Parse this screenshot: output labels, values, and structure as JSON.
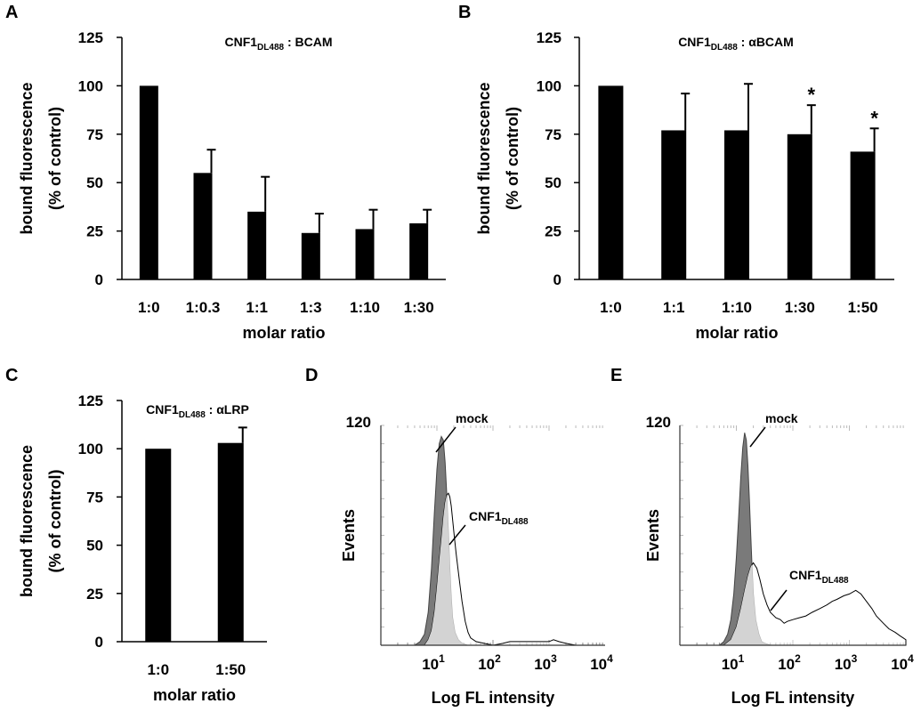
{
  "chart_data": [
    {
      "panel": "A",
      "type": "bar",
      "title": "CNF1DL488 : BCAM",
      "title_parts": {
        "main": "CNF1",
        "sub": "DL488",
        "rest": " : BCAM"
      },
      "xlabel": "molar ratio",
      "ylabel": "bound fluorescence",
      "ylabel2": "(% of control)",
      "ylim": [
        0,
        125
      ],
      "yticks": [
        0,
        25,
        50,
        75,
        100,
        125
      ],
      "categories": [
        "1:0",
        "1:0.3",
        "1:1",
        "1:3",
        "1:10",
        "1:30"
      ],
      "values": [
        100,
        55,
        35,
        24,
        26,
        29
      ],
      "errors": [
        0,
        12,
        18,
        10,
        10,
        7
      ],
      "significant": [
        false,
        false,
        false,
        false,
        false,
        false
      ],
      "bar_color": "#000000"
    },
    {
      "panel": "B",
      "type": "bar",
      "title": "CNF1DL488 : αBCAM",
      "title_parts": {
        "main": "CNF1",
        "sub": "DL488",
        "rest": " : αBCAM"
      },
      "xlabel": "molar ratio",
      "ylabel": "bound fluorescence",
      "ylabel2": "(% of control)",
      "ylim": [
        0,
        125
      ],
      "yticks": [
        0,
        25,
        50,
        75,
        100,
        125
      ],
      "categories": [
        "1:0",
        "1:1",
        "1:10",
        "1:30",
        "1:50"
      ],
      "values": [
        100,
        77,
        77,
        75,
        66
      ],
      "errors": [
        0,
        19,
        24,
        15,
        12
      ],
      "significant": [
        false,
        false,
        false,
        true,
        true
      ],
      "significance_marker": "*",
      "bar_color": "#000000"
    },
    {
      "panel": "C",
      "type": "bar",
      "title": "CNF1DL488 : αLRP",
      "title_parts": {
        "main": "CNF1",
        "sub": "DL488",
        "rest": " : αLRP"
      },
      "xlabel": "molar ratio",
      "ylabel": "bound fluorescence",
      "ylabel2": "(% of control)",
      "ylim": [
        0,
        125
      ],
      "yticks": [
        0,
        25,
        50,
        75,
        100,
        125
      ],
      "categories": [
        "1:0",
        "1:50"
      ],
      "values": [
        100,
        103
      ],
      "errors": [
        0,
        8
      ],
      "significant": [
        false,
        false
      ],
      "bar_color": "#000000"
    },
    {
      "panel": "D",
      "type": "area",
      "xscale": "log",
      "xlim": [
        1,
        10000
      ],
      "xtick_labels": [
        {
          "base": "10",
          "exp": "1"
        },
        {
          "base": "10",
          "exp": "2"
        },
        {
          "base": "10",
          "exp": "3"
        },
        {
          "base": "10",
          "exp": "4"
        }
      ],
      "xtick_values": [
        10,
        100,
        1000,
        10000
      ],
      "ylim": [
        0,
        120
      ],
      "ytick_label": "120",
      "xlabel": "Log FL intensity",
      "ylabel": "Events",
      "series": [
        {
          "name": "mock",
          "fill": "#7a7a7a",
          "x": [
            4,
            5,
            6,
            7,
            8,
            9,
            10,
            11,
            12,
            13,
            14,
            15,
            16,
            17,
            18,
            19,
            21,
            24,
            28,
            35
          ],
          "y": [
            0,
            2,
            6,
            18,
            42,
            72,
            96,
            110,
            114,
            112,
            100,
            82,
            62,
            42,
            26,
            15,
            7,
            3,
            1,
            0
          ]
        },
        {
          "name": "CNF1DL488",
          "name_parts": {
            "main": "CNF1",
            "sub": "DL488"
          },
          "fill": "#d3d3d3",
          "x": [
            6,
            7,
            8,
            9,
            10,
            11,
            12,
            13,
            14,
            15,
            16,
            17,
            18,
            20,
            22,
            25,
            28,
            32,
            36,
            40,
            50,
            70,
            100,
            150,
            200,
            300,
            500,
            800,
            1000,
            1200,
            1500,
            2000,
            3000,
            5000,
            8000
          ],
          "y": [
            0,
            3,
            8,
            18,
            32,
            46,
            58,
            70,
            78,
            82,
            83,
            81,
            76,
            62,
            50,
            36,
            24,
            13,
            7,
            4,
            2,
            1,
            0,
            1,
            2,
            2,
            2,
            2,
            2,
            3,
            2,
            1,
            0,
            0,
            0
          ]
        }
      ]
    },
    {
      "panel": "E",
      "type": "area",
      "xscale": "log",
      "xlim": [
        1,
        10000
      ],
      "xtick_labels": [
        {
          "base": "10",
          "exp": "1"
        },
        {
          "base": "10",
          "exp": "2"
        },
        {
          "base": "10",
          "exp": "3"
        },
        {
          "base": "10",
          "exp": "4"
        }
      ],
      "xtick_values": [
        10,
        100,
        1000,
        10000
      ],
      "ylim": [
        0,
        120
      ],
      "ytick_label": "120",
      "xlabel": "Log FL intensity",
      "ylabel": "Events",
      "series": [
        {
          "name": "mock",
          "fill": "#7a7a7a",
          "x": [
            5,
            6,
            7,
            8,
            9,
            10,
            11,
            12,
            13,
            14,
            15,
            16,
            17,
            18,
            19,
            20,
            22,
            25,
            28,
            32,
            40
          ],
          "y": [
            0,
            2,
            6,
            14,
            28,
            48,
            70,
            92,
            108,
            116,
            112,
            98,
            80,
            60,
            42,
            28,
            14,
            6,
            2,
            1,
            0
          ]
        },
        {
          "name": "CNF1DL488",
          "name_parts": {
            "main": "CNF1",
            "sub": "DL488"
          },
          "fill": "#d3d3d3",
          "x": [
            6,
            8,
            10,
            12,
            14,
            16,
            18,
            20,
            23,
            26,
            30,
            35,
            40,
            50,
            60,
            70,
            80,
            100,
            130,
            170,
            220,
            300,
            400,
            500,
            600,
            800,
            1000,
            1300,
            1600,
            2000,
            2500,
            3000,
            4000,
            5000,
            6500,
            8000,
            9000,
            10000
          ],
          "y": [
            0,
            3,
            10,
            20,
            30,
            38,
            43,
            45,
            42,
            36,
            28,
            22,
            18,
            15,
            14,
            12,
            13,
            14,
            15,
            16,
            18,
            20,
            22,
            24,
            25,
            27,
            28,
            30,
            28,
            24,
            20,
            16,
            12,
            9,
            7,
            5,
            4,
            3
          ]
        }
      ]
    }
  ]
}
